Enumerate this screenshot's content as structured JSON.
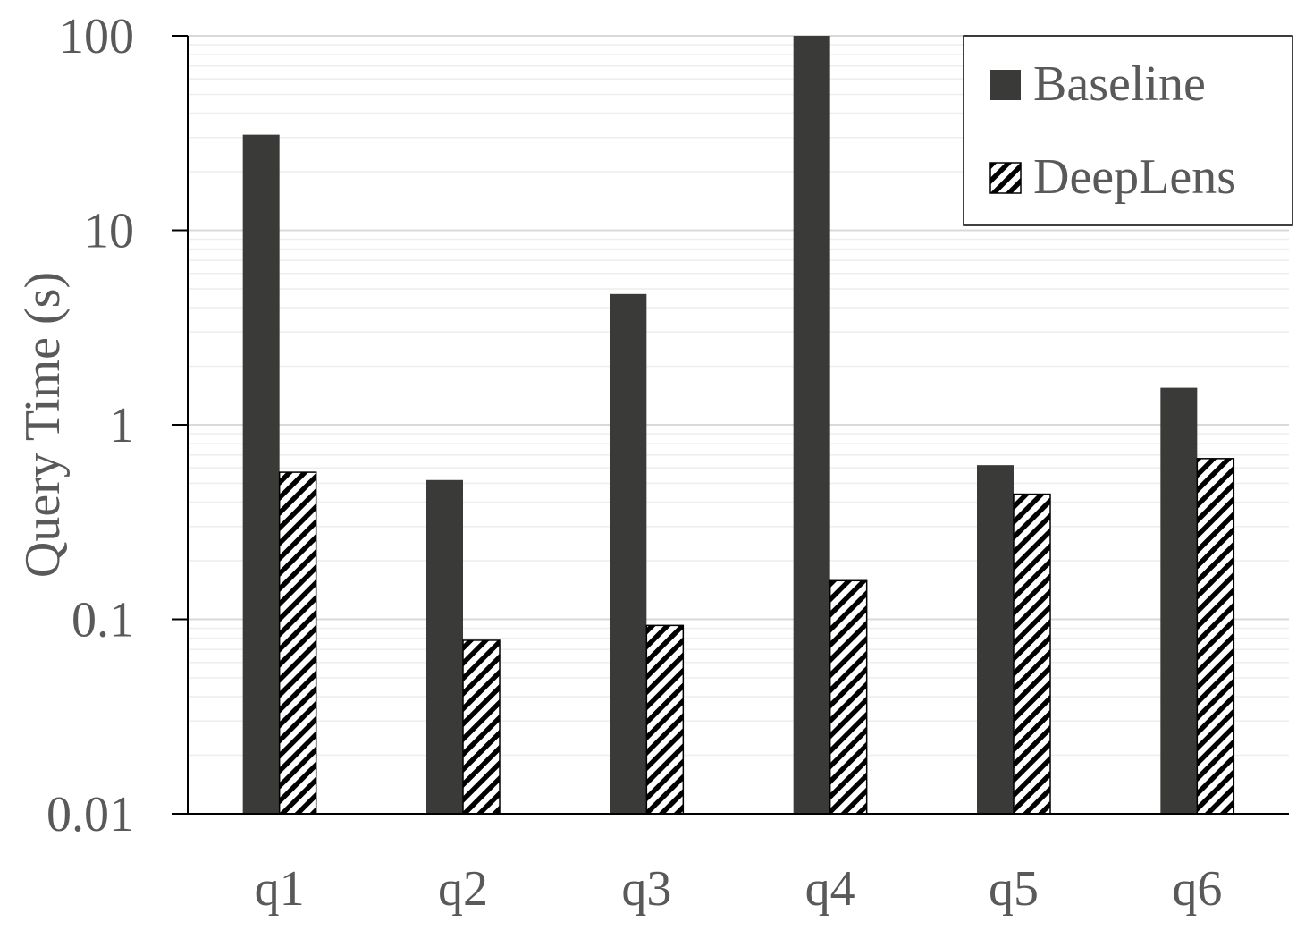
{
  "chart_data": {
    "type": "bar",
    "title": "",
    "xlabel": "",
    "ylabel": "Query Time (s)",
    "yscale": "log",
    "ylim": [
      0.01,
      100
    ],
    "yticks": [
      "0.01",
      "0.1",
      "1",
      "10",
      "100"
    ],
    "grid": true,
    "legend_position": "top-right",
    "categories": [
      "q1",
      "q2",
      "q3",
      "q4",
      "q5",
      "q6"
    ],
    "series": [
      {
        "name": "Baseline",
        "pattern": "solid",
        "color": "#3a3a38",
        "values": [
          31,
          0.52,
          4.7,
          100,
          0.62,
          1.55
        ]
      },
      {
        "name": "DeepLens",
        "pattern": "diagonal-hatch",
        "color": "#000000",
        "values": [
          0.57,
          0.078,
          0.093,
          0.158,
          0.44,
          0.67
        ]
      }
    ]
  }
}
